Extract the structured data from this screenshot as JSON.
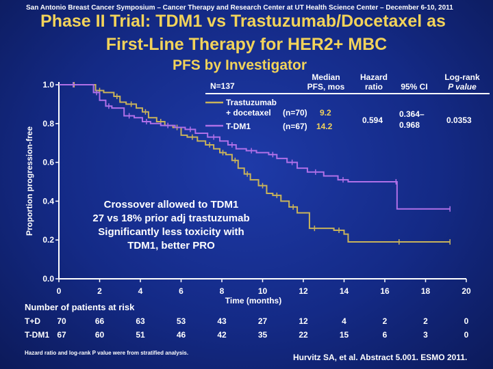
{
  "conference": "San Antonio Breast Cancer Symposium – Cancer Therapy and Research Center at UT Health Science Center – December 6-10, 2011",
  "title_line1": "Phase II Trial:  TDM1 vs Trastuzumab/Docetaxel as",
  "title_line2": "First-Line Therapy for HER2+ MBC",
  "title_line3": "PFS by Investigator",
  "colors": {
    "title": "#f2d35a",
    "trastuzumab": "#c9b35a",
    "tdm1": "#b070e8",
    "text": "#ffffff"
  },
  "table": {
    "n_label": "N=137",
    "header_median": [
      "Median",
      "PFS, mos"
    ],
    "header_hazard": [
      "Hazard",
      "ratio"
    ],
    "header_ci": "95% CI",
    "header_logrank": [
      "Log-rank",
      "P value"
    ],
    "arm1_name_line1": "Trastuzumab",
    "arm1_name_line2": "+ docetaxel",
    "arm1_n": "(n=70)",
    "arm1_median": "9.2",
    "arm2_name": "T-DM1",
    "arm2_n": "(n=67)",
    "arm2_median": "14.2",
    "hazard_ratio": "0.594",
    "ci_line1": "0.364–",
    "ci_line2": "0.968",
    "p_value": "0.0353"
  },
  "crossover_note": [
    "Crossover allowed to TDM1",
    "27 vs 18% prior adj trastuzumab",
    "Significantly less toxicity with",
    "TDM1, better PRO"
  ],
  "chart_data": {
    "type": "line",
    "title": "PFS by Investigator",
    "xlabel": "Time (months)",
    "ylabel": "Proportion progression-free",
    "xlim": [
      0,
      20
    ],
    "ylim": [
      0,
      1
    ],
    "x_ticks": [
      "0",
      "2",
      "4",
      "6",
      "8",
      "10",
      "12",
      "14",
      "16",
      "18",
      "20"
    ],
    "y_ticks": [
      "0.0",
      "0.2",
      "0.4",
      "0.6",
      "0.8",
      "1.0"
    ],
    "series": [
      {
        "name": "Trastuzumab + docetaxel",
        "color": "#c9b35a",
        "x": [
          0,
          1.5,
          1.8,
          2.2,
          2.7,
          3.0,
          3.3,
          3.8,
          4.1,
          4.4,
          4.8,
          5.2,
          5.6,
          6.0,
          6.3,
          6.8,
          7.2,
          7.6,
          7.9,
          8.2,
          8.5,
          8.8,
          9.1,
          9.4,
          9.8,
          10.2,
          10.5,
          10.9,
          11.3,
          11.7,
          12.3,
          12.8,
          13.5,
          14.0,
          14.2,
          19.2
        ],
        "y": [
          1.0,
          1.0,
          0.97,
          0.96,
          0.94,
          0.91,
          0.9,
          0.88,
          0.86,
          0.83,
          0.81,
          0.79,
          0.78,
          0.74,
          0.73,
          0.71,
          0.69,
          0.67,
          0.65,
          0.64,
          0.61,
          0.57,
          0.54,
          0.51,
          0.48,
          0.44,
          0.43,
          0.4,
          0.37,
          0.34,
          0.26,
          0.26,
          0.25,
          0.23,
          0.19,
          0.19
        ]
      },
      {
        "name": "T-DM1",
        "color": "#b070e8",
        "x": [
          0,
          1.4,
          1.7,
          2.0,
          2.3,
          2.6,
          3.2,
          3.7,
          4.1,
          4.5,
          5.0,
          5.7,
          6.2,
          6.7,
          7.3,
          7.9,
          8.3,
          8.7,
          9.2,
          9.7,
          10.3,
          10.7,
          11.2,
          11.7,
          12.2,
          13.0,
          13.7,
          14.2,
          16.5,
          16.6,
          19.2
        ],
        "y": [
          1.0,
          1.0,
          0.96,
          0.92,
          0.89,
          0.88,
          0.84,
          0.83,
          0.81,
          0.8,
          0.79,
          0.78,
          0.77,
          0.75,
          0.73,
          0.71,
          0.69,
          0.67,
          0.66,
          0.65,
          0.64,
          0.62,
          0.6,
          0.57,
          0.55,
          0.53,
          0.51,
          0.5,
          0.5,
          0.36,
          0.36
        ]
      }
    ]
  },
  "risk_table": {
    "title": "Number of patients at risk",
    "rows": [
      {
        "label": "T+D",
        "values": [
          "70",
          "66",
          "63",
          "53",
          "43",
          "27",
          "12",
          "4",
          "2",
          "2",
          "0"
        ]
      },
      {
        "label": "T-DM1",
        "values": [
          "67",
          "60",
          "51",
          "46",
          "42",
          "35",
          "22",
          "15",
          "6",
          "3",
          "0"
        ]
      }
    ]
  },
  "footnote": "Hazard ratio and log-rank P value were from stratified analysis.",
  "citation": "Hurvitz SA, et al. Abstract 5.001. ESMO 2011."
}
